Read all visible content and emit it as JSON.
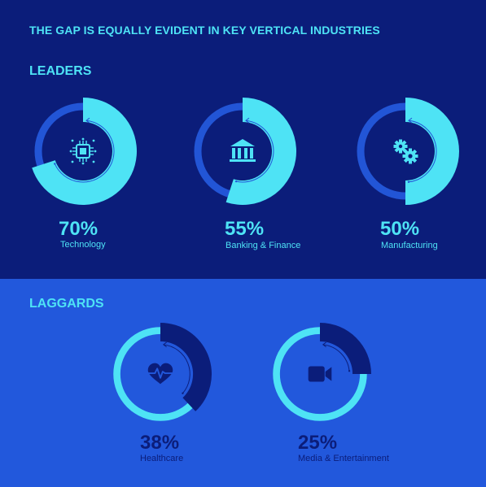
{
  "headline": "THE GAP IS EQUALLY EVIDENT IN KEY VERTICAL INDUSTRIES",
  "colors": {
    "top_bg": "#0b1d7a",
    "bottom_bg": "#2258dc",
    "cyan": "#4ee3f5",
    "ring_blue": "#2255d6",
    "dark_navy": "#0b1d7a"
  },
  "chart_data": [
    {
      "type": "pie",
      "group": "LEADERS",
      "categories": [
        "Technology",
        "Banking & Finance",
        "Manufacturing"
      ],
      "values": [
        70,
        55,
        50
      ],
      "labels": [
        "70%",
        "55%",
        "50%"
      ],
      "icons": [
        "microchip-icon",
        "bank-icon",
        "gears-icon"
      ]
    },
    {
      "type": "pie",
      "group": "LAGGARDS",
      "categories": [
        "Healthcare",
        "Media & Entertainment"
      ],
      "values": [
        38,
        25
      ],
      "labels": [
        "38%",
        "25%"
      ],
      "icons": [
        "heart-pulse-icon",
        "video-camera-icon"
      ]
    }
  ]
}
